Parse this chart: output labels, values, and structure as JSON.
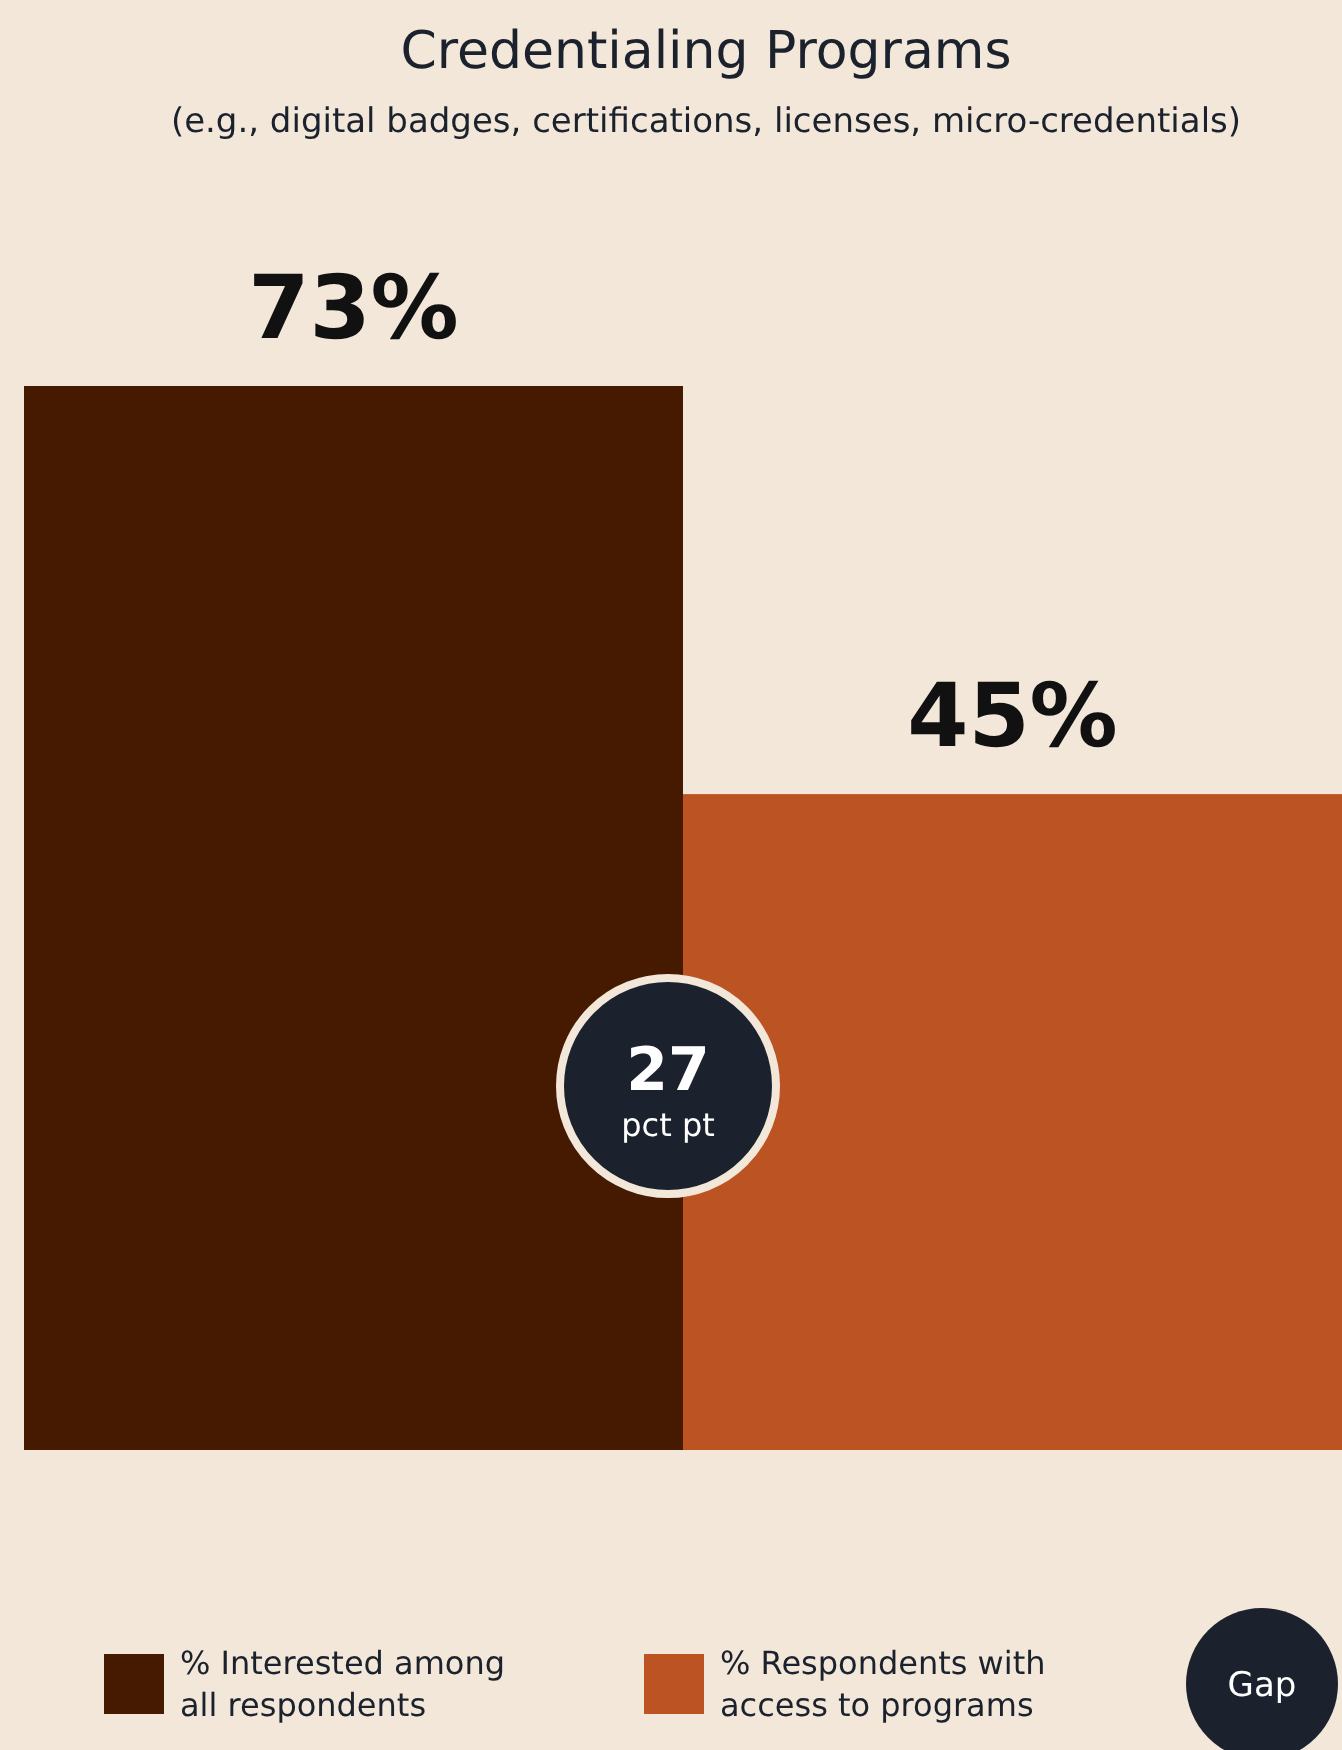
{
  "chart_data": {
    "type": "bar",
    "title": "Credentialing Programs",
    "subtitle": "(e.g., digital badges, certifications, licenses, micro-credentials)",
    "categories": [
      null
    ],
    "series": [
      {
        "name": "% Interested among all respondents",
        "color": "#461a00",
        "values": [
          73
        ],
        "value_labels": [
          "73%"
        ]
      },
      {
        "name": "% Respondents with access to programs",
        "color": "#bb5322",
        "values": [
          45
        ],
        "value_labels": [
          "45%"
        ]
      }
    ],
    "annotations": [
      "27 pct pt",
      "Gap"
    ],
    "legend": "bottom"
  }
}
